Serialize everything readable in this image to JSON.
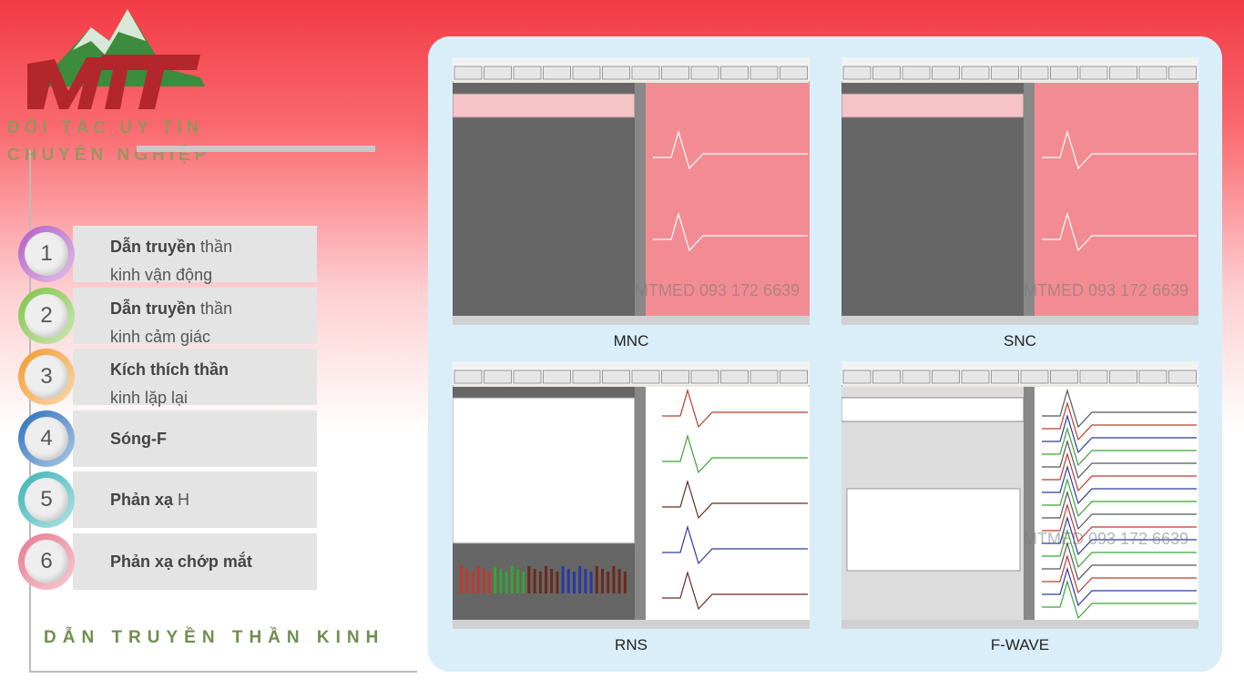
{
  "logo": {
    "tagline": [
      "ĐỐI TÁC UY TÍN",
      "CHUYÊN NGHIỆP"
    ]
  },
  "menu": [
    {
      "number": "1",
      "bold": "Dẫn truyền",
      "regular": "thần",
      "line2": "kinh vận động",
      "color": "#b05cc4"
    },
    {
      "number": "2",
      "bold": "Dẫn truyền",
      "regular": "thần",
      "line2": "kinh cảm giác",
      "color": "#7cc242"
    },
    {
      "number": "3",
      "bold": "Kích thích thần",
      "regular": "",
      "line2": "kinh lặp lại",
      "color": "#f29a2e"
    },
    {
      "number": "4",
      "bold": "Sóng-F",
      "regular": "",
      "line2": "",
      "color": "#2a6fb8"
    },
    {
      "number": "5",
      "bold": "Phản xạ",
      "regular": "H",
      "line2": "",
      "color": "#36b3b8"
    },
    {
      "number": "6",
      "bold": "Phản xạ chớp mắt",
      "regular": "",
      "line2": "",
      "color": "#e8778f"
    }
  ],
  "footer": "DẪN TRUYỀN THẦN KINH",
  "screens": [
    {
      "caption": "MNC",
      "watermark": "MTMED 093 172 6639"
    },
    {
      "caption": "SNC",
      "watermark": "MTMED 093 172 6639"
    },
    {
      "caption": "RNS",
      "watermark": ""
    },
    {
      "caption": "F-WAVE",
      "watermark": "MTMED 093 172 6639"
    }
  ]
}
